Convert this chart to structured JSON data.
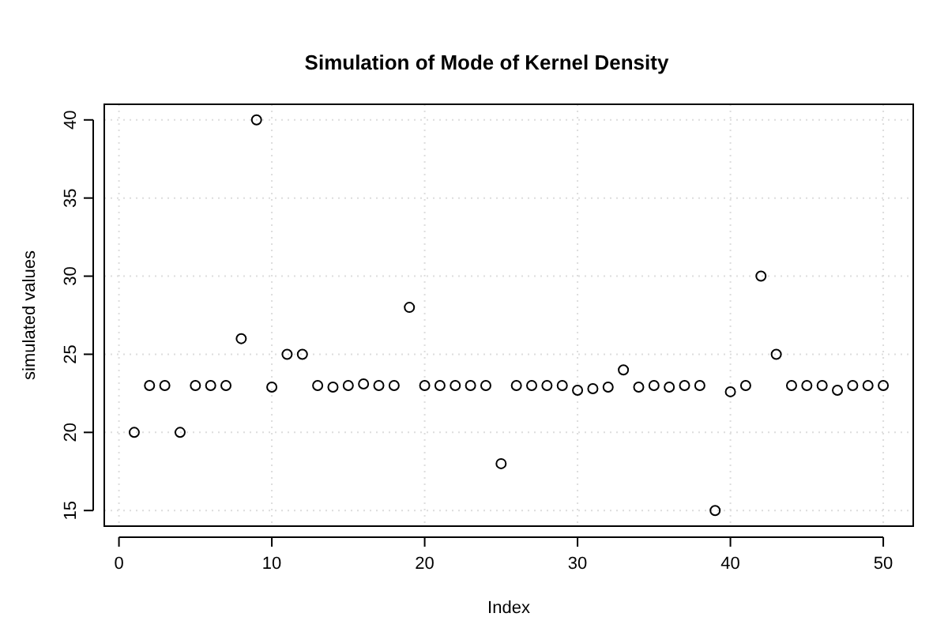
{
  "chart_data": {
    "type": "scatter",
    "title": "Simulation of Mode of Kernel Density",
    "xlabel": "Index",
    "ylabel": "simulated values",
    "x": [
      1,
      2,
      3,
      4,
      5,
      6,
      7,
      8,
      9,
      10,
      11,
      12,
      13,
      14,
      15,
      16,
      17,
      18,
      19,
      20,
      21,
      22,
      23,
      24,
      25,
      26,
      27,
      28,
      29,
      30,
      31,
      32,
      33,
      34,
      35,
      36,
      37,
      38,
      39,
      40,
      41,
      42,
      43,
      44,
      45,
      46,
      47,
      48,
      49,
      50
    ],
    "values": [
      20,
      23,
      23,
      20,
      23,
      23,
      23,
      26,
      40,
      22.9,
      25,
      25,
      23,
      22.9,
      23,
      23.1,
      23,
      23,
      28,
      23,
      23,
      23,
      23,
      23,
      18,
      23,
      23,
      23,
      23,
      22.7,
      22.8,
      22.9,
      24,
      22.9,
      23,
      22.9,
      23,
      23,
      15,
      22.6,
      23,
      30,
      25,
      23,
      23,
      23,
      22.7,
      23,
      23,
      23
    ],
    "color": "#000000",
    "marker": "circle",
    "grid": true,
    "xlim": [
      -0.96,
      51.96
    ],
    "ylim": [
      14.0,
      41.0
    ],
    "xticks": [
      0,
      10,
      20,
      30,
      40,
      50
    ],
    "yticks": [
      15,
      20,
      25,
      30,
      35,
      40
    ]
  }
}
